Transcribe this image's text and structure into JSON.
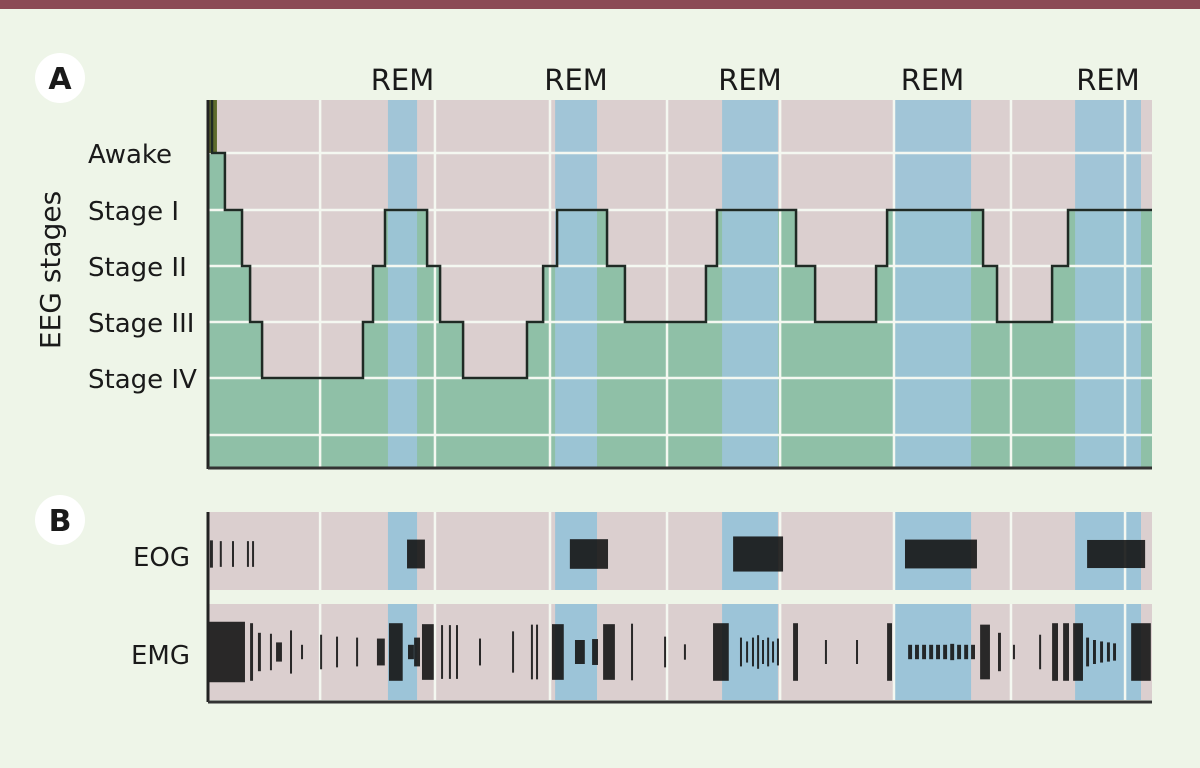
{
  "panel_labels": {
    "a": "A",
    "b": "B"
  },
  "rem_label": "REM",
  "colors": {
    "background": "#eef5e8",
    "top_bar": "#8b4a55",
    "non_rem": "#dbcfcf",
    "depth_fill": "#8fc0a7",
    "rem": "#9cc4d8",
    "line": "#1f2a24",
    "awake_marker": "#5d6b2c",
    "marks": "#151515"
  },
  "chart_data": {
    "type": "area",
    "title": "",
    "xlabel": "",
    "ylabel": "EEG stages",
    "time_unit": "minutes",
    "xlim": [
      0,
      480
    ],
    "stage_labels": [
      "Awake",
      "Stage I",
      "Stage II",
      "Stage III",
      "Stage IV"
    ],
    "awake_marker_until": 2,
    "hypnogram": [
      [
        0,
        0
      ],
      [
        8.6,
        1
      ],
      [
        17.3,
        2
      ],
      [
        21.4,
        3
      ],
      [
        27.5,
        4
      ],
      [
        78.8,
        3
      ],
      [
        83.9,
        2
      ],
      [
        90,
        1
      ],
      [
        111.4,
        2
      ],
      [
        118,
        3
      ],
      [
        129.7,
        4
      ],
      [
        162.2,
        3
      ],
      [
        170.4,
        2
      ],
      [
        177.5,
        1
      ],
      [
        202.9,
        2
      ],
      [
        212,
        3
      ],
      [
        253.2,
        2
      ],
      [
        258.8,
        1
      ],
      [
        299,
        2
      ],
      [
        308.7,
        3
      ],
      [
        339.7,
        2
      ],
      [
        345.3,
        1
      ],
      [
        394.1,
        2
      ],
      [
        401.2,
        3
      ],
      [
        429.2,
        2
      ],
      [
        437.3,
        1
      ],
      [
        480,
        1
      ]
    ],
    "rem_periods": [
      [
        91.5,
        106.3
      ],
      [
        176.5,
        197.8
      ],
      [
        261.4,
        289.8
      ],
      [
        348.8,
        388
      ],
      [
        440.9,
        474.4
      ]
    ],
    "x_gridlines": [
      57,
      115.4,
      173.9,
      233.4,
      290.9,
      348.8,
      408.3,
      466.3
    ],
    "signals": {
      "eog_label": "EOG",
      "emg_label": "EMG",
      "eog_bursts": [
        [
          1,
          1.5,
          0.35
        ],
        [
          6,
          1,
          0.33
        ],
        [
          12.2,
          1,
          0.33
        ],
        [
          19.8,
          1,
          0.33
        ],
        [
          22.4,
          1,
          0.33
        ],
        [
          101.2,
          9.1,
          0.37
        ],
        [
          184,
          19.4,
          0.38
        ],
        [
          267,
          25.4,
          0.45
        ],
        [
          354.4,
          36.6,
          0.37
        ],
        [
          447,
          29.5,
          0.36
        ]
      ],
      "emg_bursts": [
        [
          0,
          18.8,
          0.63
        ],
        [
          21.4,
          1.5,
          0.6
        ],
        [
          25.4,
          1.5,
          0.4
        ],
        [
          31.5,
          1,
          0.38
        ],
        [
          34.6,
          3,
          0.2
        ],
        [
          41.7,
          1,
          0.45
        ],
        [
          47.3,
          1,
          0.15
        ],
        [
          57,
          1,
          0.36
        ],
        [
          65.1,
          1,
          0.32
        ],
        [
          75.3,
          1,
          0.3
        ],
        [
          85.9,
          4,
          0.28
        ],
        [
          92,
          7,
          0.6
        ],
        [
          101.7,
          3,
          0.15
        ],
        [
          104.8,
          3,
          0.3
        ],
        [
          108.8,
          6,
          0.58
        ],
        [
          118.5,
          1,
          0.56
        ],
        [
          122.5,
          1,
          0.56
        ],
        [
          126.1,
          1,
          0.56
        ],
        [
          137.8,
          1,
          0.28
        ],
        [
          154.6,
          1,
          0.43
        ],
        [
          164.2,
          1,
          0.57
        ],
        [
          166.8,
          1,
          0.57
        ],
        [
          174.9,
          6,
          0.58
        ],
        [
          186.6,
          5,
          0.25
        ],
        [
          195.3,
          3,
          0.27
        ],
        [
          200.9,
          6,
          0.58
        ],
        [
          215.1,
          1,
          0.59
        ],
        [
          231.9,
          1,
          0.32
        ],
        [
          242,
          1,
          0.16
        ],
        [
          256.8,
          8,
          0.6
        ],
        [
          270.5,
          1,
          0.3
        ],
        [
          273.6,
          1,
          0.22
        ],
        [
          276.6,
          1,
          0.3
        ],
        [
          279.2,
          1,
          0.35
        ],
        [
          281.7,
          1,
          0.25
        ],
        [
          284.3,
          1,
          0.3
        ],
        [
          286.8,
          1,
          0.22
        ],
        [
          289.3,
          1,
          0.28
        ],
        [
          297.5,
          2.5,
          0.6
        ],
        [
          313.7,
          1,
          0.25
        ],
        [
          329.5,
          1,
          0.25
        ],
        [
          345.3,
          2.5,
          0.6
        ],
        [
          356,
          2,
          0.15
        ],
        [
          359.5,
          2,
          0.15
        ],
        [
          363.1,
          2,
          0.15
        ],
        [
          366.7,
          2,
          0.15
        ],
        [
          370.2,
          2,
          0.15
        ],
        [
          373.8,
          2,
          0.15
        ],
        [
          377.4,
          2,
          0.17
        ],
        [
          380.9,
          2,
          0.15
        ],
        [
          384.5,
          2,
          0.15
        ],
        [
          388,
          2,
          0.15
        ],
        [
          392.6,
          5,
          0.57
        ],
        [
          401.7,
          1.5,
          0.4
        ],
        [
          409.3,
          1,
          0.15
        ],
        [
          422.6,
          1,
          0.36
        ],
        [
          429.2,
          3,
          0.6
        ],
        [
          434.8,
          3,
          0.6
        ],
        [
          439.9,
          5,
          0.6
        ],
        [
          446.5,
          1.5,
          0.3
        ],
        [
          450,
          1.5,
          0.25
        ],
        [
          453.6,
          1.5,
          0.22
        ],
        [
          457.1,
          1.5,
          0.2
        ],
        [
          460.2,
          1.5,
          0.18
        ],
        [
          469.4,
          10,
          0.6
        ]
      ]
    }
  }
}
